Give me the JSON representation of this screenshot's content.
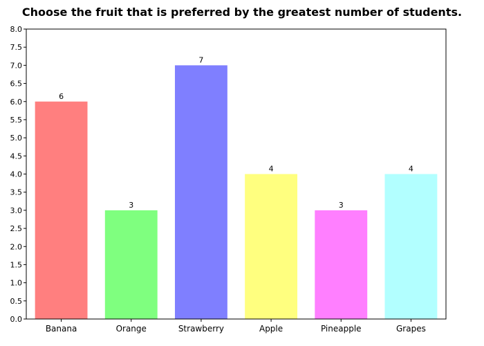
{
  "chart_data": {
    "type": "bar",
    "title": "Choose the fruit that is preferred by the greatest number of students.",
    "categories": [
      "Banana",
      "Orange",
      "Strawberry",
      "Apple",
      "Pineapple",
      "Grapes"
    ],
    "values": [
      6,
      3,
      7,
      4,
      3,
      4
    ],
    "colors": [
      "#ff7f7f",
      "#7fff7f",
      "#7f7fff",
      "#ffff7f",
      "#ff7fff",
      "#b2ffff"
    ],
    "data_labels": [
      "6",
      "3",
      "7",
      "4",
      "3",
      "4"
    ],
    "ylim": [
      0,
      8
    ],
    "y_ticks": [
      "0.0",
      "0.5",
      "1.0",
      "1.5",
      "2.0",
      "2.5",
      "3.0",
      "3.5",
      "4.0",
      "4.5",
      "5.0",
      "5.5",
      "6.0",
      "6.5",
      "7.0",
      "7.5",
      "8.0"
    ],
    "xlabel": "",
    "ylabel": "",
    "grid": false,
    "legend": "none"
  }
}
